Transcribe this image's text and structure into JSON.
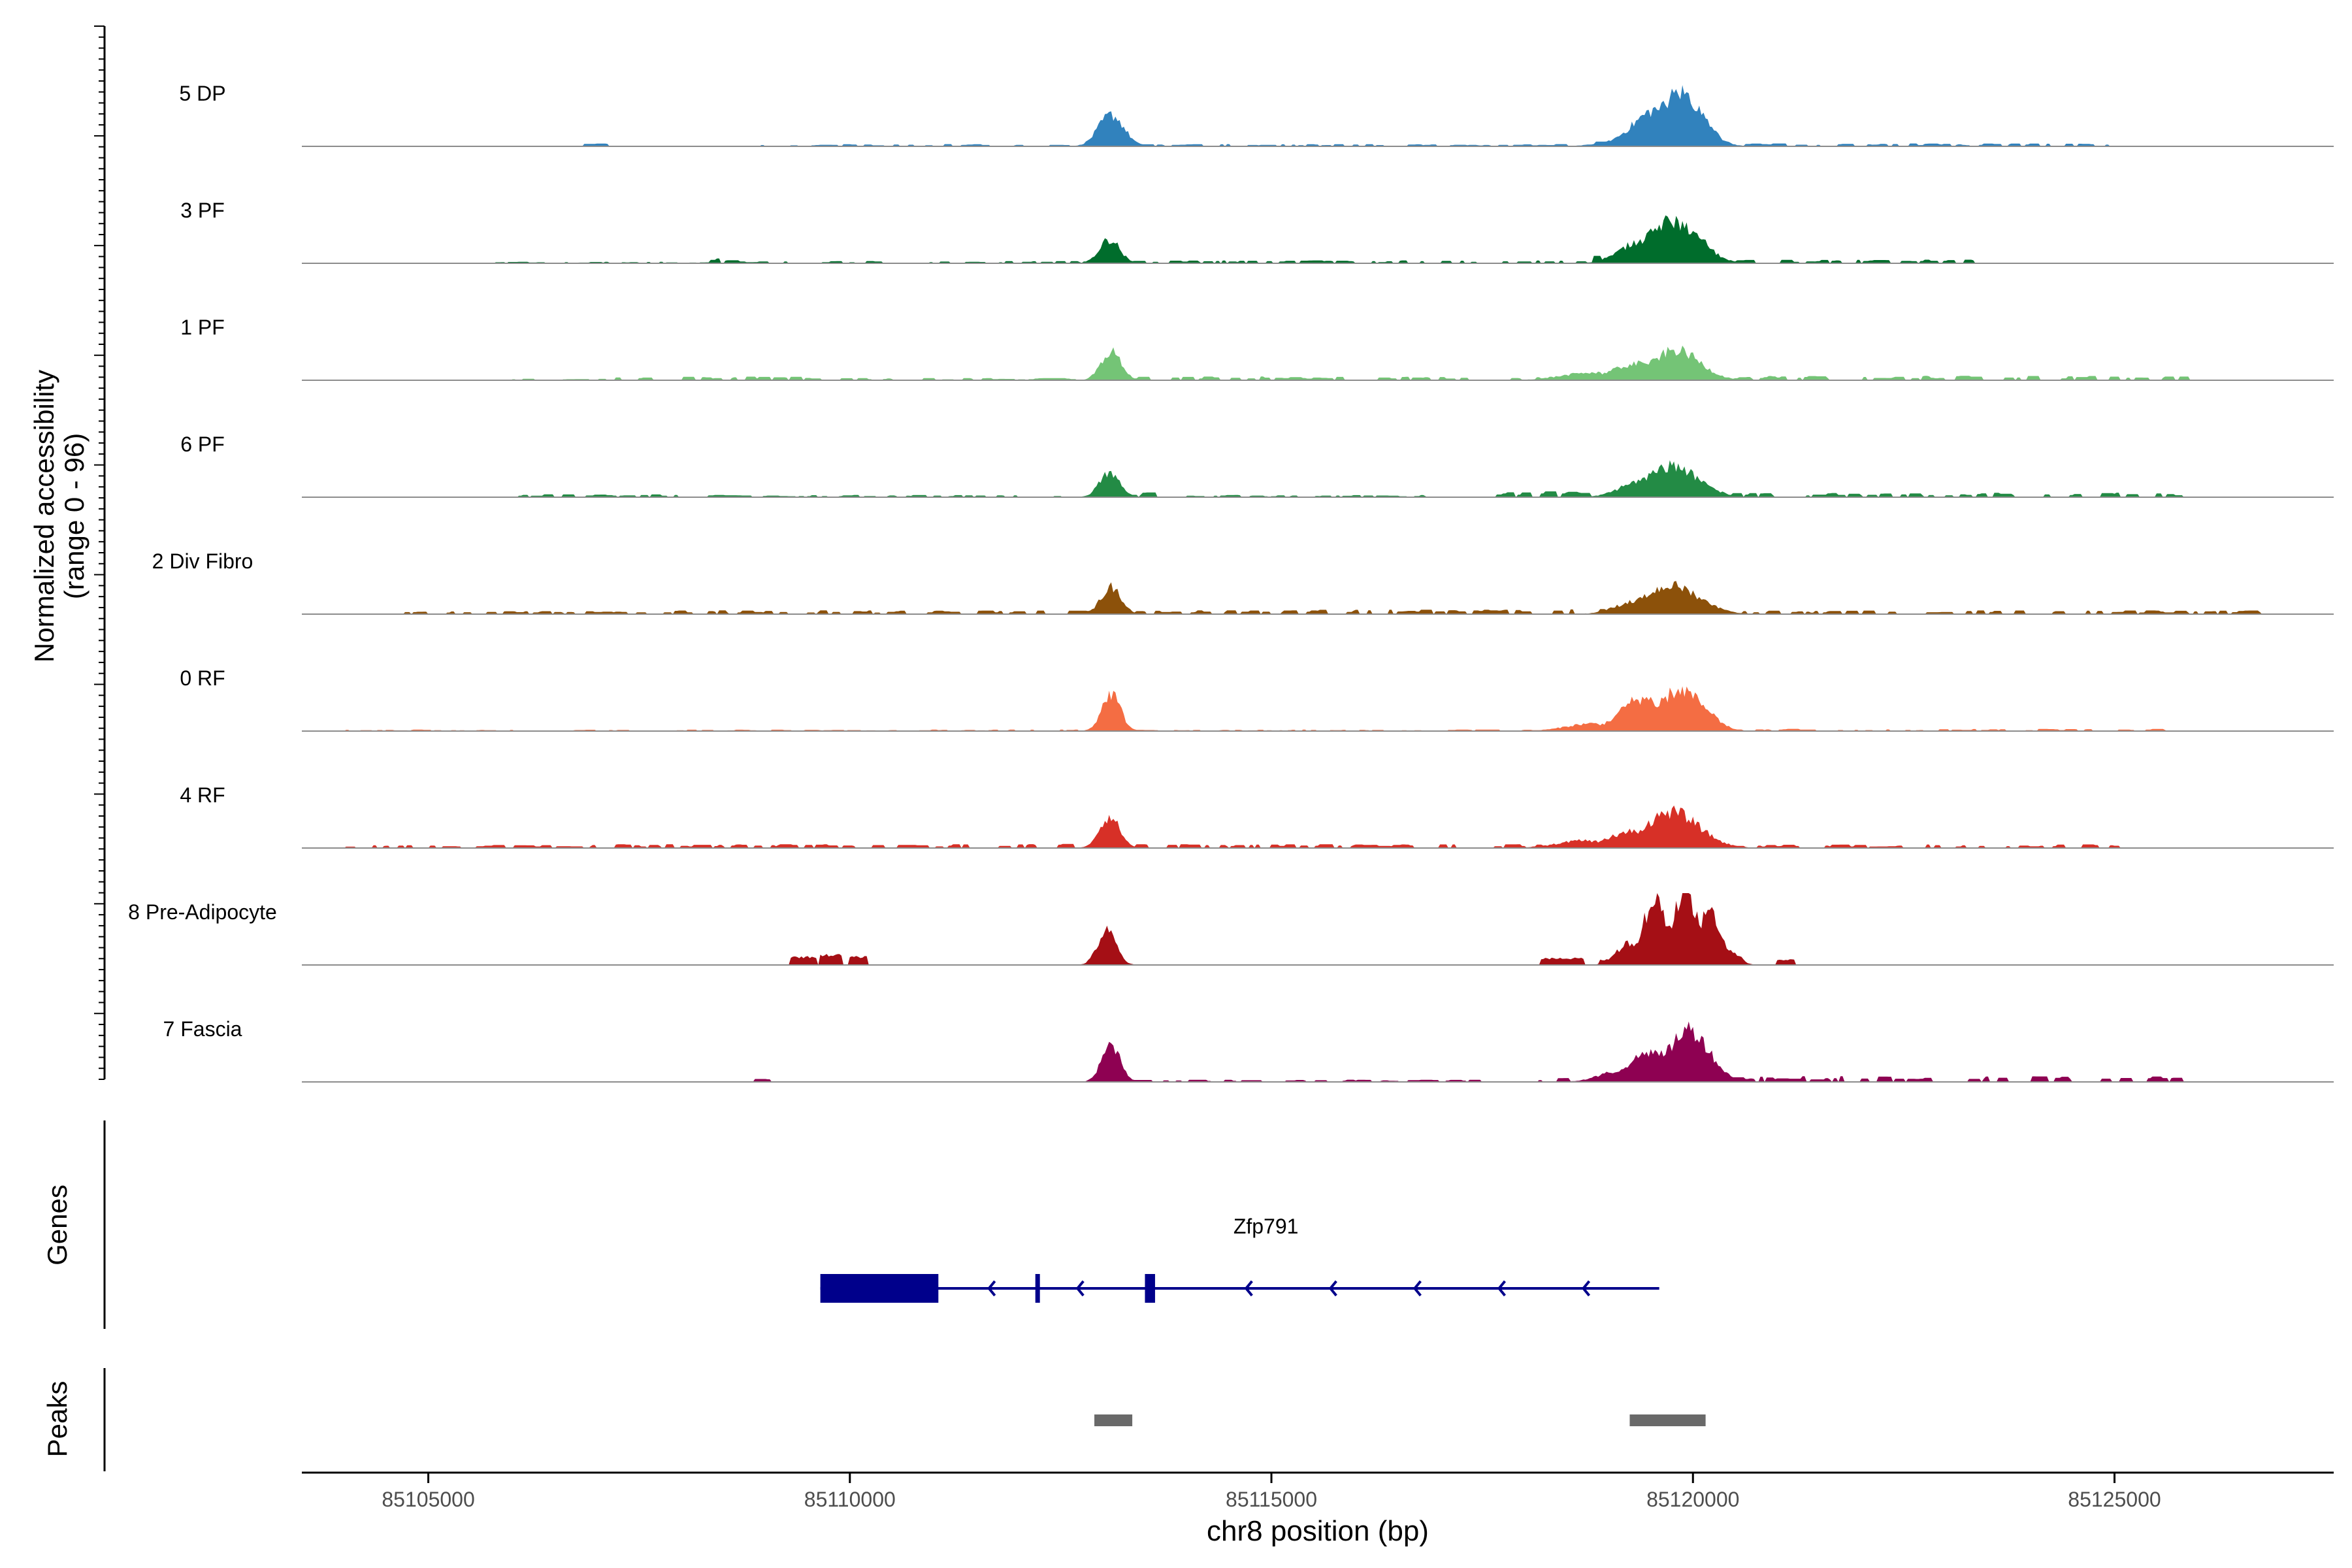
{
  "chart_data": {
    "type": "area",
    "title": "",
    "ylabel": "Normalized accessibility",
    "ylabel_range": "(range 0 - 96)",
    "xlabel": "chr8 position (bp)",
    "y_range": [
      0,
      96
    ],
    "x_range": [
      85103500,
      85127600
    ],
    "x_ticks": [
      85105000,
      85110000,
      85115000,
      85120000,
      85125000
    ],
    "x_tick_labels": [
      "85105000",
      "85110000",
      "85115000",
      "85120000",
      "85125000"
    ],
    "tracks": [
      {
        "name": "5 DP",
        "color": "#3182BD",
        "peaks": [
          [
            85113100,
            150,
            42
          ],
          [
            85119600,
            300,
            50
          ],
          [
            85119850,
            250,
            72
          ],
          [
            85120050,
            180,
            40
          ],
          [
            85119150,
            250,
            8
          ]
        ],
        "noise": [
          [
            85106700,
            85107100,
            4
          ],
          [
            85108800,
            85113000,
            3
          ],
          [
            85113300,
            85118800,
            3
          ],
          [
            85118800,
            85119300,
            7
          ],
          [
            85120300,
            85124900,
            4
          ]
        ]
      },
      {
        "name": "3 PF",
        "color": "#006D2C",
        "peaks": [
          [
            85113080,
            120,
            32
          ],
          [
            85119750,
            300,
            56
          ],
          [
            85119400,
            250,
            30
          ],
          [
            85120000,
            200,
            35
          ]
        ],
        "noise": [
          [
            85105800,
            85108300,
            2
          ],
          [
            85108300,
            85108600,
            8
          ],
          [
            85108600,
            85113000,
            3
          ],
          [
            85113300,
            85118800,
            4
          ],
          [
            85118800,
            85119200,
            10
          ],
          [
            85120300,
            85123400,
            5
          ]
        ]
      },
      {
        "name": "1 PF",
        "color": "#74C476",
        "peaks": [
          [
            85113100,
            120,
            38
          ],
          [
            85119800,
            280,
            40
          ],
          [
            85119350,
            300,
            22
          ],
          [
            85118800,
            350,
            10
          ]
        ],
        "noise": [
          [
            85105900,
            85107200,
            2
          ],
          [
            85107200,
            85109500,
            5
          ],
          [
            85109500,
            85113000,
            3
          ],
          [
            85113300,
            85118400,
            5
          ],
          [
            85120300,
            85125800,
            6
          ]
        ]
      },
      {
        "name": "6 PF",
        "color": "#238B45",
        "peaks": [
          [
            85113080,
            120,
            32
          ],
          [
            85119750,
            300,
            42
          ],
          [
            85119400,
            250,
            22
          ],
          [
            85120050,
            200,
            20
          ]
        ],
        "noise": [
          [
            85105800,
            85107900,
            4
          ],
          [
            85107900,
            85108400,
            6
          ],
          [
            85108400,
            85112500,
            3
          ],
          [
            85113300,
            85113600,
            7
          ],
          [
            85114000,
            85116800,
            3
          ],
          [
            85117600,
            85118900,
            8
          ],
          [
            85120400,
            85125700,
            6
          ]
        ]
      },
      {
        "name": "2 Div Fibro",
        "color": "#8C510A",
        "peaks": [
          [
            85113100,
            120,
            36
          ],
          [
            85119750,
            320,
            38
          ],
          [
            85119350,
            250,
            18
          ],
          [
            85120100,
            200,
            15
          ]
        ],
        "noise": [
          [
            85104700,
            85107400,
            4
          ],
          [
            85107400,
            85109500,
            5
          ],
          [
            85109600,
            85113000,
            5
          ],
          [
            85113300,
            85118000,
            6
          ],
          [
            85118300,
            85119000,
            7
          ],
          [
            85120400,
            85126700,
            5
          ]
        ]
      },
      {
        "name": "0 RF",
        "color": "#F46D43",
        "peaks": [
          [
            85113100,
            110,
            50
          ],
          [
            85119400,
            260,
            44
          ],
          [
            85119850,
            260,
            55
          ],
          [
            85120100,
            180,
            30
          ],
          [
            85118800,
            300,
            10
          ]
        ],
        "noise": [
          [
            85104000,
            85113000,
            2
          ],
          [
            85113300,
            85118300,
            2
          ],
          [
            85120400,
            85125800,
            3
          ]
        ]
      },
      {
        "name": "4 RF",
        "color": "#D73027",
        "peaks": [
          [
            85113080,
            120,
            42
          ],
          [
            85119750,
            320,
            48
          ],
          [
            85119300,
            300,
            22
          ],
          [
            85118700,
            300,
            10
          ]
        ],
        "noise": [
          [
            85104000,
            85107000,
            4
          ],
          [
            85107000,
            85112000,
            5
          ],
          [
            85112000,
            85113000,
            6
          ],
          [
            85113300,
            85118300,
            5
          ],
          [
            85120400,
            85125000,
            5
          ]
        ]
      },
      {
        "name": "8 Pre-Adipocyte",
        "color": "#A50F15",
        "peaks": [
          [
            85113050,
            110,
            45
          ],
          [
            85119250,
            150,
            30
          ],
          [
            85119550,
            150,
            86
          ],
          [
            85119900,
            150,
            100
          ],
          [
            85120200,
            140,
            72
          ],
          [
            85120450,
            100,
            20
          ]
        ],
        "noise": [],
        "blocks": [
          [
            85109300,
            85109600,
            12
          ],
          [
            85109650,
            85109900,
            15
          ],
          [
            85110000,
            85110200,
            12
          ],
          [
            85118200,
            85118700,
            10
          ],
          [
            85118900,
            85119100,
            8
          ],
          [
            85121000,
            85121200,
            8
          ]
        ]
      },
      {
        "name": "7 Fascia",
        "color": "#8E0152",
        "peaks": [
          [
            85113100,
            110,
            50
          ],
          [
            85119500,
            260,
            40
          ],
          [
            85119950,
            240,
            70
          ],
          [
            85119150,
            250,
            15
          ]
        ],
        "noise": [
          [
            85108800,
            85109000,
            4
          ],
          [
            85113300,
            85118200,
            3
          ],
          [
            85118300,
            85118900,
            8
          ],
          [
            85120400,
            85125800,
            8
          ]
        ]
      }
    ],
    "gene_track": {
      "label": "Genes",
      "gene_name": "Zfp791",
      "color": "#00008B",
      "strand": "-",
      "start": 85109650,
      "end": 85119600,
      "thick_exons": [
        [
          85109650,
          85111050
        ]
      ],
      "thin_exons": [
        [
          85112200,
          85112250
        ],
        [
          85113500,
          85113620
        ]
      ],
      "arrows": [
        85111650,
        85112700,
        85114700,
        85115700,
        85116700,
        85117700,
        85118700
      ]
    },
    "peaks_track": {
      "label": "Peaks",
      "color": "#696969",
      "regions": [
        [
          85112900,
          85113350
        ],
        [
          85119250,
          85120150
        ]
      ]
    }
  }
}
